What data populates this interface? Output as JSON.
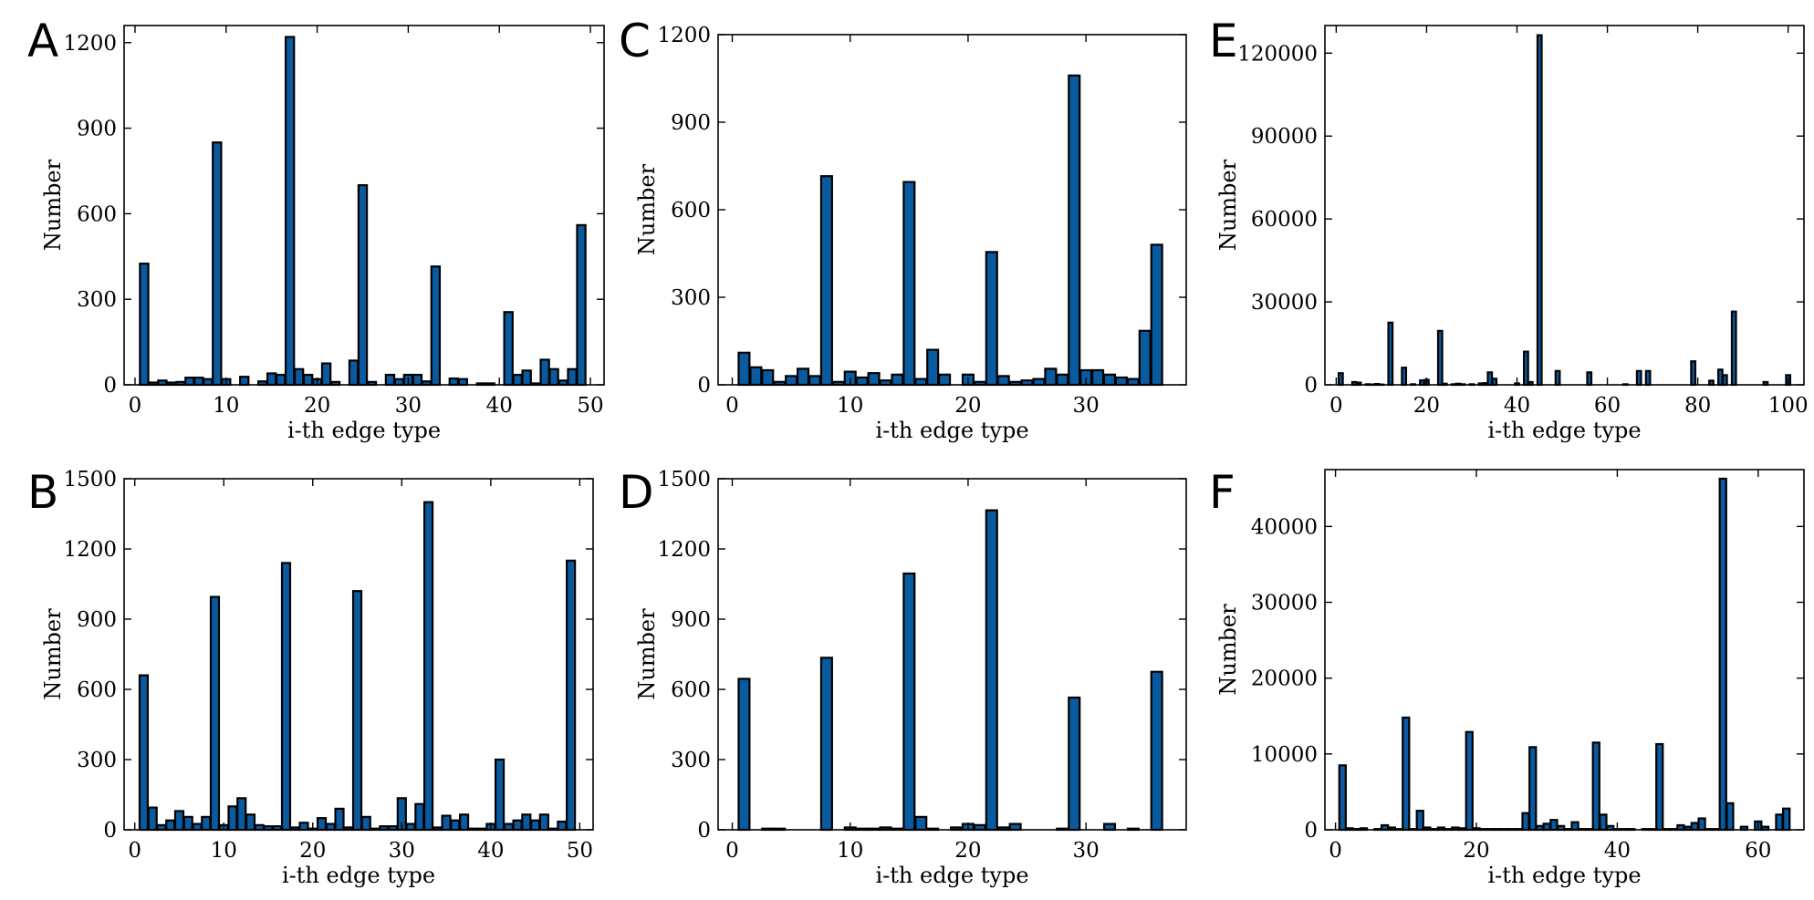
{
  "colors": {
    "bar_fill": "#0a5aa0",
    "bar_edge": "#000000"
  },
  "chart_data": [
    {
      "panel": "A",
      "type": "bar",
      "xlabel": "i-th edge type",
      "ylabel": "Number",
      "xlim": [
        -1.2,
        51.5
      ],
      "ylim": [
        0,
        1260
      ],
      "xticks": [
        0,
        10,
        20,
        30,
        40,
        50
      ],
      "yticks": [
        0,
        300,
        600,
        900,
        1200
      ],
      "values": [
        0,
        425,
        8,
        15,
        8,
        10,
        25,
        25,
        20,
        850,
        20,
        0,
        28,
        0,
        12,
        40,
        35,
        1220,
        55,
        35,
        20,
        75,
        10,
        0,
        85,
        700,
        10,
        0,
        35,
        20,
        35,
        35,
        12,
        415,
        0,
        22,
        20,
        0,
        5,
        5,
        0,
        255,
        35,
        50,
        5,
        88,
        55,
        15,
        55,
        560
      ]
    },
    {
      "panel": "B",
      "type": "bar",
      "xlabel": "i-th edge type",
      "ylabel": "Number",
      "xlim": [
        -1.2,
        51.5
      ],
      "ylim": [
        0,
        1500
      ],
      "xticks": [
        0,
        10,
        20,
        30,
        40,
        50
      ],
      "yticks": [
        0,
        300,
        600,
        900,
        1200,
        1500
      ],
      "values": [
        0,
        660,
        95,
        20,
        40,
        80,
        55,
        25,
        55,
        995,
        20,
        100,
        135,
        65,
        20,
        15,
        15,
        1140,
        10,
        30,
        5,
        50,
        25,
        90,
        10,
        1020,
        55,
        5,
        15,
        15,
        135,
        25,
        110,
        1400,
        10,
        60,
        40,
        65,
        5,
        5,
        25,
        300,
        25,
        40,
        65,
        40,
        65,
        5,
        35,
        1150
      ]
    },
    {
      "panel": "C",
      "type": "bar",
      "xlabel": "i-th edge type",
      "ylabel": "Number",
      "xlim": [
        -1.2,
        38.5
      ],
      "ylim": [
        0,
        1200
      ],
      "xticks": [
        0,
        10,
        20,
        30
      ],
      "yticks": [
        0,
        300,
        600,
        900,
        1200
      ],
      "values": [
        0,
        110,
        60,
        50,
        10,
        30,
        55,
        30,
        715,
        10,
        45,
        25,
        40,
        15,
        35,
        695,
        20,
        120,
        35,
        0,
        35,
        10,
        455,
        30,
        10,
        15,
        20,
        55,
        35,
        1060,
        50,
        50,
        35,
        25,
        20,
        185,
        480
      ]
    },
    {
      "panel": "D",
      "type": "bar",
      "xlabel": "i-th edge type",
      "ylabel": "Number",
      "xlim": [
        -1.2,
        38.5
      ],
      "ylim": [
        0,
        1500
      ],
      "xticks": [
        0,
        10,
        20,
        30
      ],
      "yticks": [
        0,
        300,
        600,
        900,
        1200,
        1500
      ],
      "values": [
        0,
        645,
        0,
        5,
        5,
        0,
        0,
        0,
        735,
        0,
        10,
        5,
        5,
        10,
        5,
        1095,
        55,
        5,
        0,
        10,
        25,
        20,
        1365,
        10,
        25,
        0,
        0,
        0,
        5,
        565,
        0,
        0,
        25,
        0,
        5,
        0,
        675
      ]
    },
    {
      "panel": "E",
      "type": "bar",
      "xlabel": "i-th edge type",
      "ylabel": "Number",
      "xlim": [
        -2.5,
        103.5
      ],
      "ylim": [
        0,
        130000
      ],
      "xticks": [
        0,
        20,
        40,
        60,
        80,
        100
      ],
      "yticks": [
        0,
        30000,
        60000,
        90000,
        120000
      ],
      "values": [
        0,
        4200,
        0,
        0,
        1000,
        800,
        0,
        200,
        100,
        300,
        100,
        0,
        22500,
        0,
        0,
        6200,
        0,
        200,
        0,
        1600,
        1800,
        0,
        0,
        19500,
        400,
        0,
        200,
        400,
        200,
        0,
        200,
        0,
        500,
        600,
        4500,
        2200,
        0,
        0,
        0,
        0,
        500,
        0,
        12000,
        1000,
        0,
        126500,
        0,
        0,
        0,
        5000,
        0,
        0,
        0,
        0,
        0,
        0,
        4500,
        0,
        0,
        0,
        0,
        0,
        0,
        0,
        200,
        0,
        0,
        5000,
        0,
        5000,
        0,
        0,
        0,
        0,
        0,
        0,
        0,
        0,
        0,
        8500,
        0,
        0,
        0,
        1500,
        0,
        5500,
        3500,
        0,
        26500,
        0,
        0,
        0,
        0,
        0,
        0,
        1000,
        0,
        0,
        0,
        0,
        3500
      ]
    },
    {
      "panel": "F",
      "type": "bar",
      "xlabel": "i-th edge type",
      "ylabel": "Number",
      "xlim": [
        -1.5,
        66.5
      ],
      "ylim": [
        0,
        47500
      ],
      "xticks": [
        0,
        20,
        40,
        60
      ],
      "yticks": [
        0,
        10000,
        20000,
        30000,
        40000
      ],
      "values": [
        0,
        8500,
        200,
        100,
        200,
        0,
        100,
        600,
        300,
        100,
        14800,
        100,
        2500,
        300,
        100,
        300,
        100,
        300,
        200,
        12900,
        200,
        100,
        100,
        100,
        100,
        100,
        100,
        2200,
        10900,
        500,
        800,
        1300,
        500,
        100,
        1000,
        100,
        100,
        11500,
        2000,
        500,
        100,
        100,
        100,
        0,
        100,
        100,
        11300,
        100,
        100,
        600,
        400,
        900,
        1500,
        100,
        100,
        46300,
        3500,
        0,
        400,
        0,
        1100,
        400,
        0,
        2000,
        2800
      ]
    }
  ]
}
